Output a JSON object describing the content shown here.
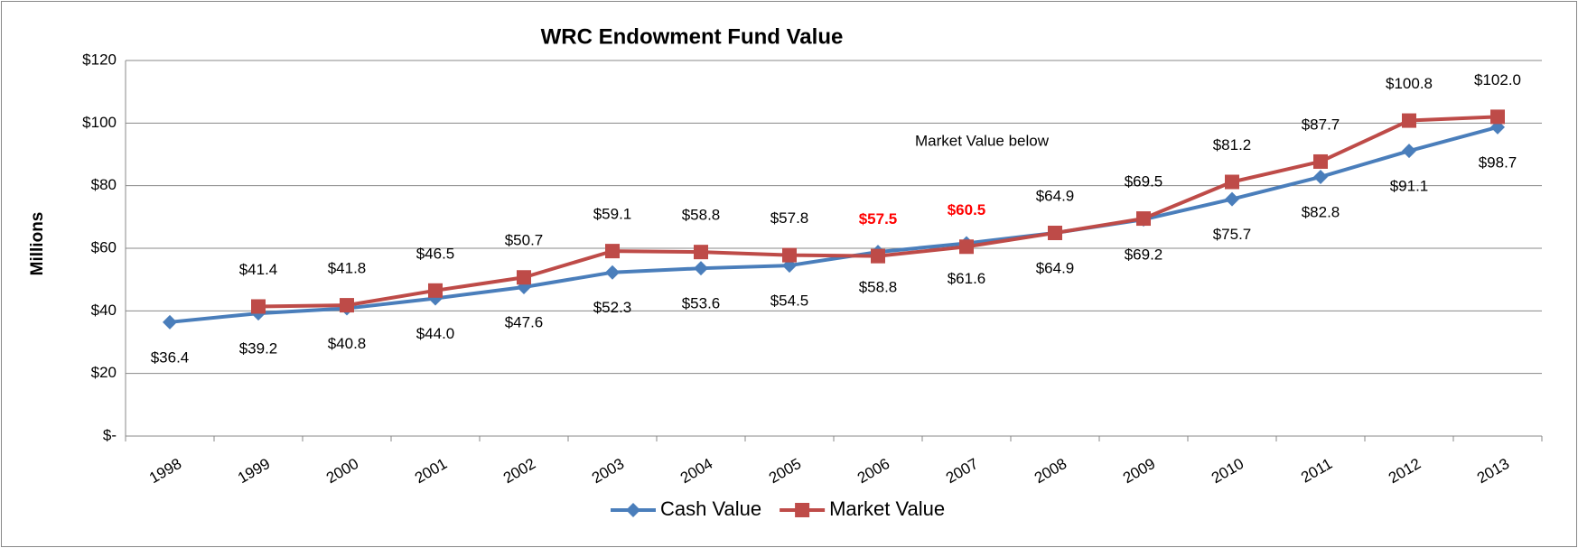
{
  "chart_data": {
    "type": "line",
    "title": "WRC Endowment Fund Value",
    "y_label": "Millions",
    "annotation": "Market Value below",
    "categories": [
      "1998",
      "1999",
      "2000",
      "2001",
      "2002",
      "2003",
      "2004",
      "2005",
      "2006",
      "2007",
      "2008",
      "2009",
      "2010",
      "2011",
      "2012",
      "2013"
    ],
    "series": [
      {
        "name": "Cash Value",
        "color": "#4a7ebb",
        "marker": "diamond",
        "values": [
          36.4,
          39.2,
          40.8,
          44.0,
          47.6,
          52.3,
          53.6,
          54.5,
          58.8,
          61.6,
          64.9,
          69.2,
          75.7,
          82.8,
          91.1,
          98.7
        ],
        "value_labels": [
          "$36.4",
          "$39.2",
          "$40.8",
          "$44.0",
          "$47.6",
          "$52.3",
          "$53.6",
          "$54.5",
          "$58.8",
          "$61.6",
          "$64.9",
          "$69.2",
          "$75.7",
          "$82.8",
          "$91.1",
          "$98.7"
        ],
        "label_position": "below"
      },
      {
        "name": "Market Value",
        "color": "#be4b48",
        "marker": "square",
        "values": [
          null,
          41.4,
          41.8,
          46.5,
          50.7,
          59.1,
          58.8,
          57.8,
          57.5,
          60.5,
          64.9,
          69.5,
          81.2,
          87.7,
          100.8,
          102.0
        ],
        "value_labels": [
          null,
          "$41.4",
          "$41.8",
          "$46.5",
          "$50.7",
          "$59.1",
          "$58.8",
          "$57.8",
          "$57.5",
          "$60.5",
          "$64.9",
          "$69.5",
          "$81.2",
          "$87.7",
          "$100.8",
          "$102.0"
        ],
        "label_position": "above",
        "highlight": {
          "color": "#ff0000",
          "indices": [
            8,
            9
          ]
        }
      }
    ],
    "ylim": [
      0,
      120
    ],
    "yticks": [
      {
        "value": 0,
        "label": "$-"
      },
      {
        "value": 20,
        "label": "$20"
      },
      {
        "value": 40,
        "label": "$40"
      },
      {
        "value": 60,
        "label": "$60"
      },
      {
        "value": 80,
        "label": "$80"
      },
      {
        "value": 100,
        "label": "$100"
      },
      {
        "value": 120,
        "label": "$120"
      }
    ],
    "grid": true,
    "legend": "bottom"
  }
}
